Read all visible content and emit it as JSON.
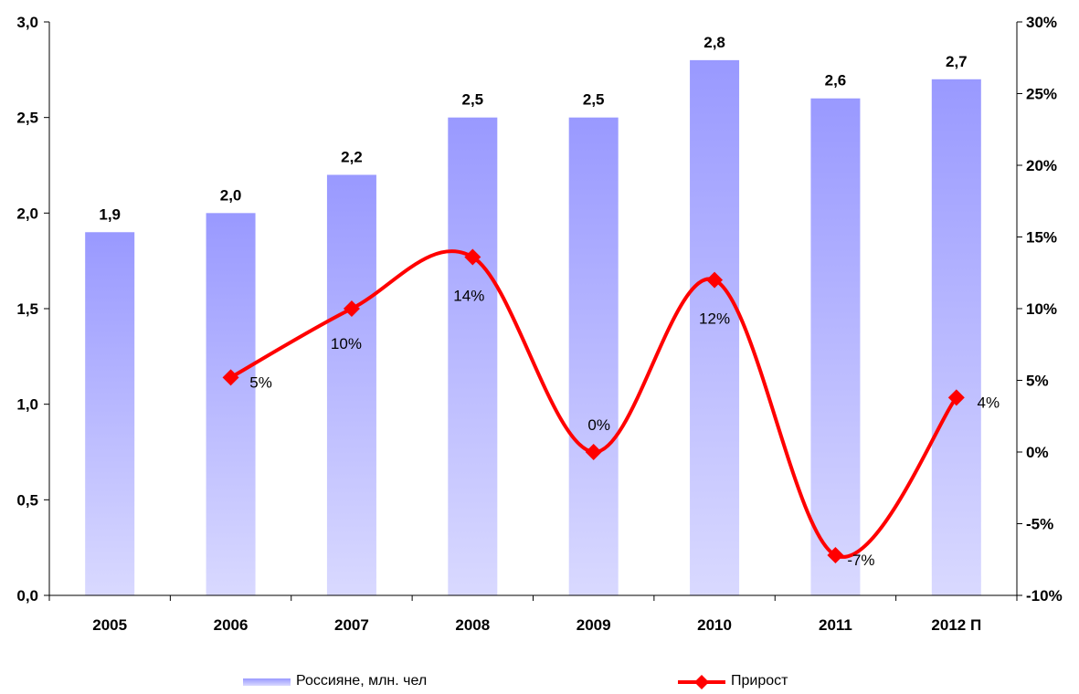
{
  "chart_data": {
    "type": "bar",
    "categories": [
      "2005",
      "2006",
      "2007",
      "2008",
      "2009",
      "2010",
      "2011",
      "2012 П"
    ],
    "series": [
      {
        "name": "Россияне, млн. чел",
        "type": "bar",
        "axis": "left",
        "values": [
          1.9,
          2.0,
          2.2,
          2.5,
          2.5,
          2.8,
          2.6,
          2.7
        ],
        "labels": [
          "1,9",
          "2,0",
          "2,2",
          "2,5",
          "2,5",
          "2,8",
          "2,6",
          "2,7"
        ],
        "color_top": "#9999ff",
        "color_bottom": "#d9d9ff"
      },
      {
        "name": "Прирост",
        "type": "line",
        "axis": "right",
        "values": [
          null,
          5.2,
          10.0,
          13.6,
          0.0,
          12.0,
          -7.2,
          3.8
        ],
        "labels": [
          "",
          "5%",
          "10%",
          "14%",
          "0%",
          "12%",
          "-7%",
          "4%"
        ],
        "color": "#ff0000",
        "smooth": true,
        "marker": "diamond"
      }
    ],
    "y_left": {
      "ticks": [
        "0,0",
        "0,5",
        "1,0",
        "1,5",
        "2,0",
        "2,5",
        "3,0"
      ],
      "ylim": [
        0,
        3
      ]
    },
    "y_right": {
      "ticks": [
        "-10%",
        "-5%",
        "0%",
        "5%",
        "10%",
        "15%",
        "20%",
        "25%",
        "30%"
      ],
      "ylim": [
        -10,
        30
      ]
    },
    "legend": {
      "placement": "bottom",
      "entries": [
        "Россияне, млн. чел",
        "Прирост"
      ]
    },
    "grid": false
  }
}
